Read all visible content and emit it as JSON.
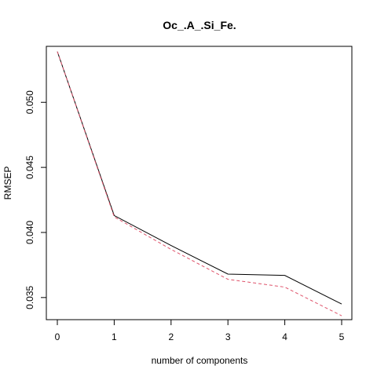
{
  "chart_data": {
    "type": "line",
    "title": "Oc_.A_.Si_Fe.",
    "xlabel": "number of components",
    "ylabel": "RMSEP",
    "xlim": [
      0,
      5
    ],
    "ylim": [
      0.0333,
      0.0543
    ],
    "x": [
      0,
      1,
      2,
      3,
      4,
      5
    ],
    "xticks": [
      "0",
      "1",
      "2",
      "3",
      "4",
      "5"
    ],
    "yticks": [
      0.035,
      0.04,
      0.045,
      0.05
    ],
    "ytick_labels": [
      "0.035",
      "0.040",
      "0.045",
      "0.050"
    ],
    "grid": false,
    "series": [
      {
        "values": [
          0.0539,
          0.0413,
          0.039,
          0.0368,
          0.0367,
          0.0345
        ],
        "color": "#000000",
        "style": "solid"
      },
      {
        "values": [
          0.0539,
          0.0412,
          0.0387,
          0.0364,
          0.0358,
          0.0336
        ],
        "color": "#DF536B",
        "style": "dashed"
      }
    ]
  }
}
